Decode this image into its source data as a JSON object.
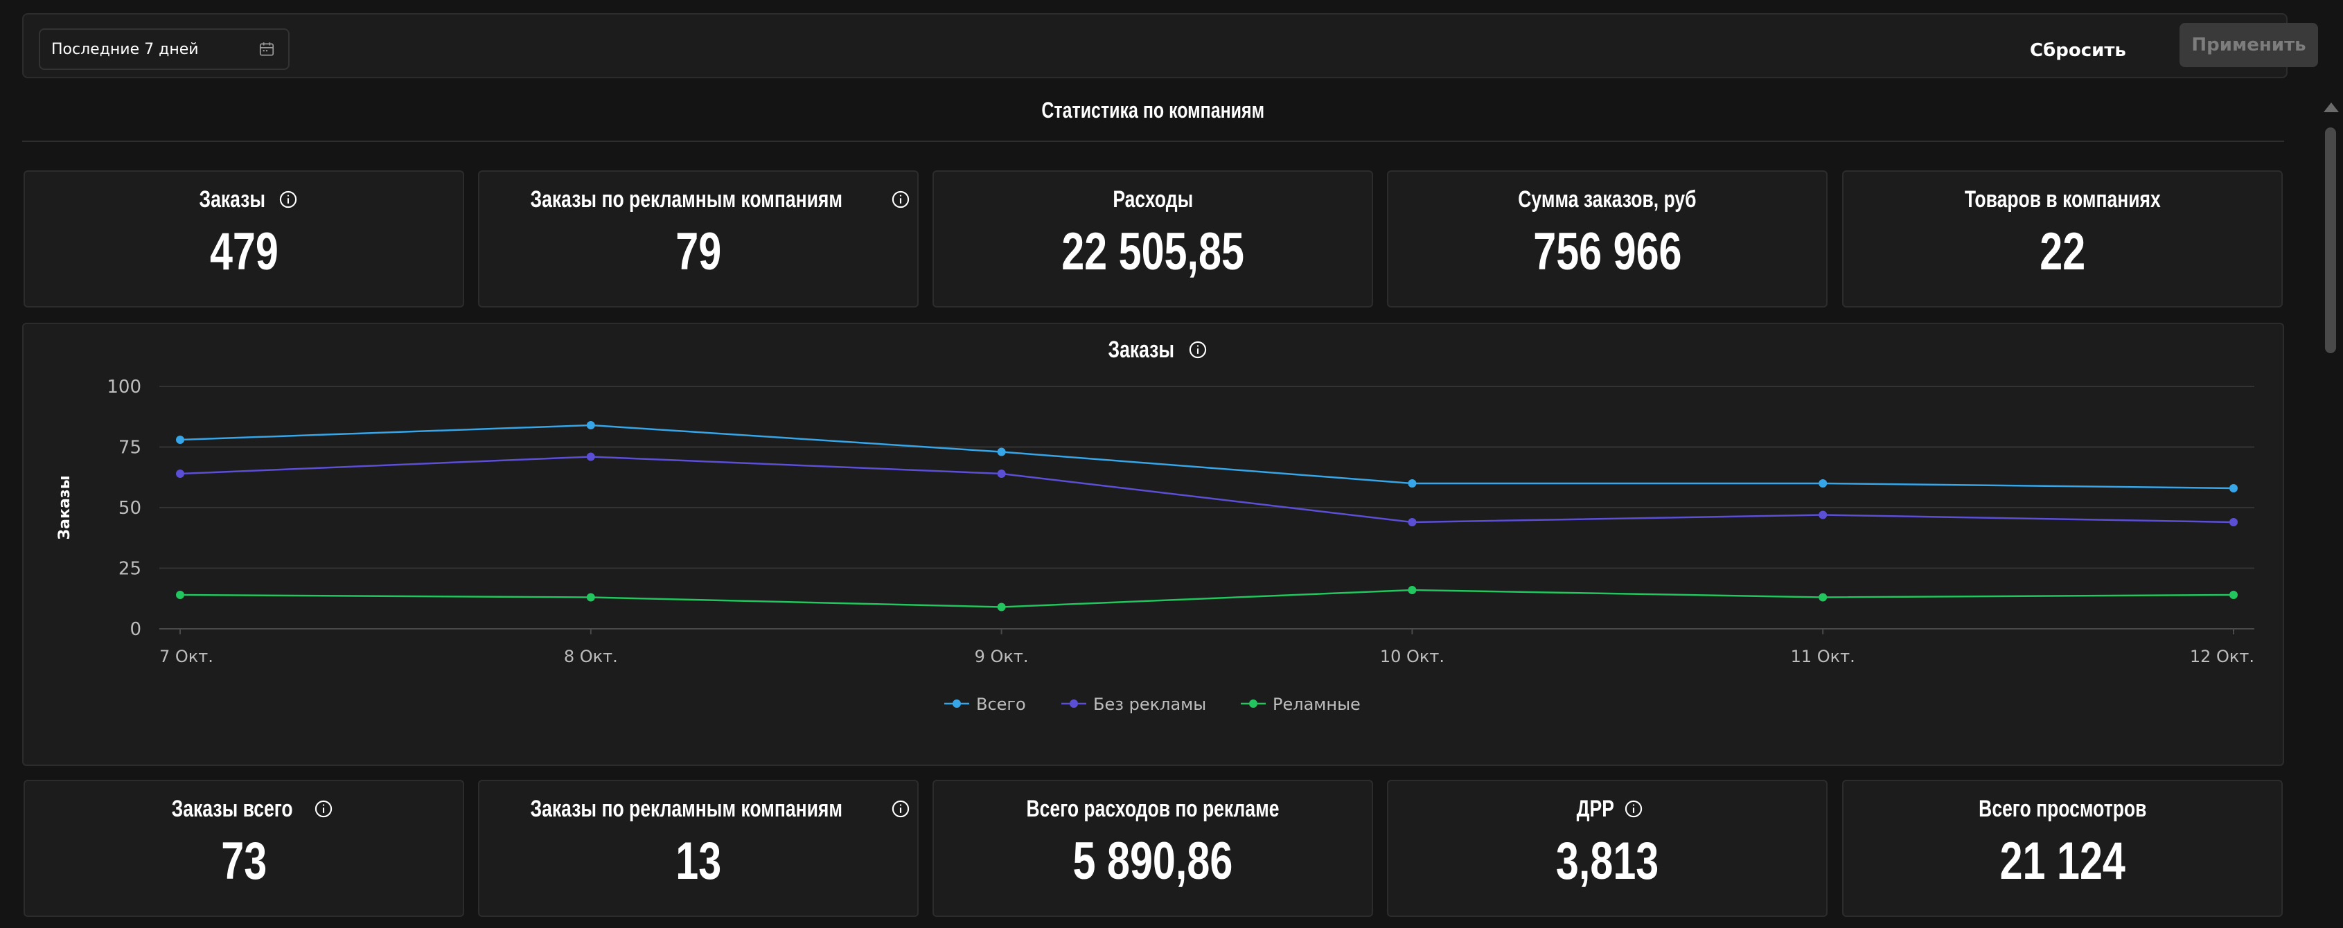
{
  "filter": {
    "date_range": "Последние 7 дней",
    "reset_label": "Сбросить",
    "apply_label": "Применить"
  },
  "section_title": "Статистика по компаниям",
  "top_stats": [
    {
      "label": "Заказы",
      "value": "479",
      "info": true
    },
    {
      "label": "Заказы по рекламным компаниям",
      "value": "79",
      "info": true
    },
    {
      "label": "Расходы",
      "value": "22 505,85",
      "info": false
    },
    {
      "label": "Сумма заказов, руб",
      "value": "756 966",
      "info": false
    },
    {
      "label": "Товаров в компаниях",
      "value": "22",
      "info": false
    }
  ],
  "bottom_stats": [
    {
      "label": "Заказы всего",
      "value": "73",
      "info": true
    },
    {
      "label": "Заказы по рекламным компаниям",
      "value": "13",
      "info": true
    },
    {
      "label": "Всего расходов по рекламе",
      "value": "5 890,86",
      "info": false
    },
    {
      "label": "ДРР",
      "value": "3,813",
      "info": true
    },
    {
      "label": "Всего просмотров",
      "value": "21 124",
      "info": false
    }
  ],
  "chart_data": {
    "type": "line",
    "title": "Заказы",
    "ylabel": "Заказы",
    "xlabel": "",
    "categories": [
      "7 Окт.",
      "8 Окт.",
      "9 Окт.",
      "10 Окт.",
      "11 Окт.",
      "12 Окт."
    ],
    "yticks": [
      0,
      25,
      50,
      75,
      100
    ],
    "ylim": [
      0,
      100
    ],
    "grid": true,
    "legend_position": "bottom-center",
    "series": [
      {
        "name": "Всего",
        "color": "#36a6e8",
        "values": [
          78,
          84,
          73,
          60,
          60,
          58
        ]
      },
      {
        "name": "Без рекламы",
        "color": "#5b4fd6",
        "values": [
          64,
          71,
          64,
          44,
          47,
          44
        ]
      },
      {
        "name": "Реламные",
        "color": "#22c55e",
        "values": [
          14,
          13,
          9,
          16,
          13,
          14
        ]
      }
    ]
  },
  "icons": {
    "info": "info-icon",
    "calendar": "calendar-icon"
  }
}
